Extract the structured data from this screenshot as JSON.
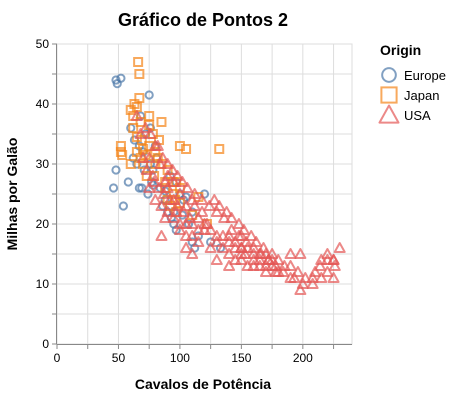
{
  "chart_data": {
    "type": "scatter",
    "title": "Gráfico de Pontos 2",
    "xlabel": "Cavalos de Potência",
    "ylabel": "Milhas por Galão",
    "xlim": [
      0,
      240
    ],
    "ylim": [
      0,
      50
    ],
    "x_ticks": [
      "0",
      "50",
      "100",
      "150",
      "200"
    ],
    "y_ticks": [
      "0",
      "10",
      "20",
      "30",
      "40",
      "50"
    ],
    "grid": true,
    "legend": {
      "title": "Origin",
      "placement": "right"
    },
    "series": [
      {
        "name": "Europe",
        "shape": "circle",
        "color": "#4c78a8",
        "points": [
          [
            46,
            26
          ],
          [
            48,
            44
          ],
          [
            49,
            43.4
          ],
          [
            52,
            44.3
          ],
          [
            48,
            29
          ],
          [
            54,
            23
          ],
          [
            58,
            27
          ],
          [
            60,
            36
          ],
          [
            62,
            31
          ],
          [
            63,
            34
          ],
          [
            65,
            30
          ],
          [
            67,
            26
          ],
          [
            67,
            33
          ],
          [
            69,
            26
          ],
          [
            70,
            32
          ],
          [
            71,
            29
          ],
          [
            74,
            25
          ],
          [
            75,
            41.5
          ],
          [
            76,
            30
          ],
          [
            77,
            27
          ],
          [
            78,
            26.5
          ],
          [
            80,
            33
          ],
          [
            81,
            31
          ],
          [
            84,
            26
          ],
          [
            86,
            23
          ],
          [
            88,
            25.5
          ],
          [
            90,
            22
          ],
          [
            93,
            21
          ],
          [
            95,
            20
          ],
          [
            97,
            27
          ],
          [
            100,
            25
          ],
          [
            102,
            21.5
          ],
          [
            103,
            24
          ],
          [
            105,
            24.5
          ],
          [
            107,
            20
          ],
          [
            110,
            17
          ],
          [
            112,
            16
          ],
          [
            115,
            18
          ],
          [
            120,
            25
          ],
          [
            125,
            17
          ],
          [
            133,
            16
          ],
          [
            76,
            36
          ],
          [
            72,
            35
          ],
          [
            68,
            38
          ],
          [
            88,
            24
          ],
          [
            92,
            28
          ],
          [
            97,
            19
          ],
          [
            110,
            22
          ],
          [
            95,
            22
          ],
          [
            78,
            29
          ]
        ]
      },
      {
        "name": "Japan",
        "shape": "square",
        "color": "#f58518",
        "points": [
          [
            52,
            33
          ],
          [
            52,
            32
          ],
          [
            53,
            31.5
          ],
          [
            60,
            39
          ],
          [
            62,
            38
          ],
          [
            65,
            32
          ],
          [
            65,
            34.5
          ],
          [
            65,
            39.5
          ],
          [
            66,
            47
          ],
          [
            67,
            41
          ],
          [
            67,
            45
          ],
          [
            68,
            31
          ],
          [
            68,
            37
          ],
          [
            69,
            34
          ],
          [
            70,
            30
          ],
          [
            70,
            32.5
          ],
          [
            72,
            31.5
          ],
          [
            75,
            33
          ],
          [
            75,
            36.5
          ],
          [
            78,
            35
          ],
          [
            79,
            28
          ],
          [
            80,
            32
          ],
          [
            82,
            31
          ],
          [
            83,
            34
          ],
          [
            85,
            37
          ],
          [
            88,
            26
          ],
          [
            88,
            27
          ],
          [
            90,
            24
          ],
          [
            92,
            23
          ],
          [
            94,
            27
          ],
          [
            95,
            25
          ],
          [
            96,
            24
          ],
          [
            97,
            22
          ],
          [
            97,
            27
          ],
          [
            100,
            23.5
          ],
          [
            100,
            26
          ],
          [
            105,
            32.5
          ],
          [
            110,
            21.5
          ],
          [
            115,
            24.5
          ],
          [
            122,
            20
          ],
          [
            132,
            32.5
          ],
          [
            85,
            30
          ],
          [
            75,
            38
          ],
          [
            63,
            40
          ],
          [
            73,
            28
          ],
          [
            60,
            30
          ],
          [
            62,
            36
          ],
          [
            80,
            30
          ],
          [
            90,
            29
          ],
          [
            100,
            33
          ]
        ]
      },
      {
        "name": "USA",
        "shape": "triangle",
        "color": "#e45756",
        "points": [
          [
            130,
            18
          ],
          [
            165,
            15
          ],
          [
            150,
            18
          ],
          [
            150,
            16
          ],
          [
            140,
            17
          ],
          [
            198,
            15
          ],
          [
            220,
            14
          ],
          [
            215,
            14
          ],
          [
            225,
            14
          ],
          [
            190,
            15
          ],
          [
            170,
            15
          ],
          [
            160,
            14
          ],
          [
            150,
            15
          ],
          [
            225,
            14
          ],
          [
            95,
            24
          ],
          [
            97,
            22
          ],
          [
            85,
            18
          ],
          [
            88,
            21
          ],
          [
            100,
            19
          ],
          [
            105,
            18
          ],
          [
            110,
            18
          ],
          [
            115,
            17
          ],
          [
            150,
            16
          ],
          [
            175,
            14
          ],
          [
            153,
            15
          ],
          [
            180,
            14
          ],
          [
            170,
            13
          ],
          [
            160,
            15
          ],
          [
            145,
            17
          ],
          [
            140,
            18
          ],
          [
            90,
            28
          ],
          [
            88,
            27
          ],
          [
            84,
            30
          ],
          [
            80,
            33
          ],
          [
            75,
            31
          ],
          [
            78,
            28
          ],
          [
            90,
            26
          ],
          [
            95,
            27
          ],
          [
            100,
            25
          ],
          [
            105,
            23
          ],
          [
            110,
            24
          ],
          [
            115,
            21
          ],
          [
            120,
            20
          ],
          [
            125,
            19
          ],
          [
            130,
            17
          ],
          [
            135,
            16
          ],
          [
            140,
            15
          ],
          [
            145,
            16
          ],
          [
            150,
            14
          ],
          [
            155,
            13
          ],
          [
            160,
            13
          ],
          [
            165,
            14
          ],
          [
            170,
            12
          ],
          [
            175,
            13
          ],
          [
            180,
            12
          ],
          [
            190,
            11
          ],
          [
            200,
            10
          ],
          [
            208,
            11
          ],
          [
            210,
            12
          ],
          [
            215,
            11
          ],
          [
            220,
            12
          ],
          [
            225,
            11
          ],
          [
            230,
            16
          ],
          [
            198,
            9
          ],
          [
            193,
            11
          ],
          [
            185,
            13
          ],
          [
            178,
            12
          ],
          [
            172,
            14
          ],
          [
            168,
            16
          ],
          [
            162,
            17
          ],
          [
            158,
            18
          ],
          [
            152,
            19
          ],
          [
            148,
            20
          ],
          [
            142,
            21
          ],
          [
            138,
            22
          ],
          [
            132,
            23
          ],
          [
            128,
            24
          ],
          [
            122,
            20
          ],
          [
            118,
            22
          ],
          [
            112,
            23
          ],
          [
            108,
            21
          ],
          [
            103,
            22
          ],
          [
            98,
            23
          ],
          [
            92,
            24
          ],
          [
            87,
            25
          ],
          [
            83,
            26
          ],
          [
            79,
            27
          ],
          [
            73,
            29
          ],
          [
            70,
            31
          ],
          [
            68,
            35
          ],
          [
            65,
            38
          ],
          [
            72,
            36
          ],
          [
            76,
            35
          ],
          [
            82,
            33
          ],
          [
            86,
            31
          ],
          [
            90,
            30
          ],
          [
            94,
            29
          ],
          [
            98,
            28
          ],
          [
            102,
            27
          ],
          [
            106,
            26
          ],
          [
            112,
            25
          ],
          [
            118,
            24
          ],
          [
            124,
            23
          ],
          [
            130,
            22
          ],
          [
            136,
            21
          ],
          [
            142,
            19
          ],
          [
            148,
            18
          ],
          [
            154,
            17
          ],
          [
            160,
            16
          ],
          [
            166,
            15
          ],
          [
            172,
            14
          ],
          [
            178,
            13
          ],
          [
            184,
            12
          ],
          [
            190,
            13
          ],
          [
            196,
            12
          ],
          [
            202,
            11
          ],
          [
            208,
            10
          ],
          [
            214,
            13
          ],
          [
            220,
            15
          ],
          [
            226,
            13
          ],
          [
            100,
            20
          ],
          [
            105,
            20
          ],
          [
            110,
            20
          ],
          [
            115,
            19
          ],
          [
            120,
            19
          ],
          [
            95,
            21
          ],
          [
            90,
            22
          ],
          [
            85,
            23
          ],
          [
            80,
            24
          ],
          [
            75,
            26
          ],
          [
            105,
            16
          ],
          [
            110,
            15
          ],
          [
            140,
            13
          ],
          [
            130,
            14
          ],
          [
            125,
            16
          ],
          [
            135,
            18
          ],
          [
            145,
            14
          ],
          [
            155,
            16
          ],
          [
            165,
            13
          ],
          [
            175,
            15
          ]
        ]
      }
    ]
  }
}
